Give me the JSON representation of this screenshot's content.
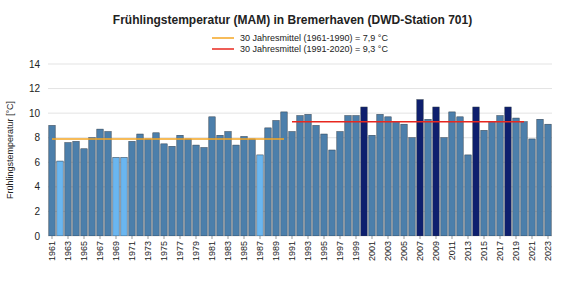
{
  "chart_data": {
    "type": "bar",
    "title": "Frühlingstemperatur (MAM) in Bremerhaven (DWD-Station 701)",
    "y_label": "Frühlingstemperatur [°C]",
    "categories": [
      "1961",
      null,
      "1963",
      null,
      "1965",
      null,
      "1967",
      null,
      "1969",
      null,
      "1971",
      null,
      "1973",
      null,
      "1975",
      null,
      "1977",
      null,
      "1979",
      null,
      "1981",
      null,
      "1983",
      null,
      "1985",
      null,
      "1987",
      null,
      "1989",
      null,
      "1991",
      null,
      "1993",
      null,
      "1995",
      null,
      "1997",
      null,
      "1999",
      null,
      "2001",
      null,
      "2003",
      null,
      "2005",
      null,
      "2007",
      null,
      "2009",
      null,
      "2011",
      null,
      "2013",
      null,
      "2015",
      null,
      "2017",
      null,
      "2019",
      null,
      "2021",
      null,
      "2023"
    ],
    "series": [
      {
        "type": "bar",
        "colors": [
          "#4c7fab",
          "#6ab6f0",
          "#4c7fab",
          "#4c7fab",
          "#4c7fab",
          "#4c7fab",
          "#4c7fab",
          "#4c7fab",
          "#6ab6f0",
          "#6ab6f0",
          "#4c7fab",
          "#4c7fab",
          "#4c7fab",
          "#4c7fab",
          "#4c7fab",
          "#4c7fab",
          "#4c7fab",
          "#4c7fab",
          "#4c7fab",
          "#4c7fab",
          "#4c7fab",
          "#4c7fab",
          "#4c7fab",
          "#4c7fab",
          "#4c7fab",
          "#4c7fab",
          "#6ab6f0",
          "#4c7fab",
          "#4c7fab",
          "#4c7fab",
          "#4c7fab",
          "#4c7fab",
          "#4c7fab",
          "#4c7fab",
          "#4c7fab",
          "#4c7fab",
          "#4c7fab",
          "#4c7fab",
          "#4c7fab",
          "#0e1f6e",
          "#4c7fab",
          "#4c7fab",
          "#4c7fab",
          "#4c7fab",
          "#4c7fab",
          "#4c7fab",
          "#0e1f6e",
          "#4c7fab",
          "#0e1f6e",
          "#4c7fab",
          "#4c7fab",
          "#4c7fab",
          "#4c7fab",
          "#0e1f6e",
          "#4c7fab",
          "#4c7fab",
          "#4c7fab",
          "#0e1f6e",
          "#4c7fab",
          "#4c7fab",
          "#4c7fab",
          "#4c7fab",
          "#4c7fab"
        ],
        "values": [
          9.0,
          6.1,
          7.6,
          7.7,
          7.1,
          8.0,
          8.7,
          8.5,
          6.4,
          6.4,
          7.7,
          8.3,
          7.9,
          8.4,
          7.5,
          7.3,
          8.2,
          7.9,
          7.4,
          7.2,
          9.7,
          8.2,
          8.5,
          7.4,
          8.1,
          7.9,
          6.6,
          8.8,
          9.4,
          10.1,
          8.5,
          9.8,
          9.9,
          9.0,
          8.3,
          7.0,
          8.5,
          9.8,
          9.8,
          10.5,
          8.2,
          9.9,
          9.7,
          9.3,
          9.1,
          8.0,
          11.1,
          9.5,
          10.5,
          8.0,
          10.1,
          9.7,
          6.6,
          10.5,
          8.6,
          9.3,
          9.8,
          10.5,
          9.6,
          9.3,
          7.9,
          9.5,
          9.1
        ]
      },
      {
        "type": "line",
        "name": "30 Jahresmittel (1961-1990) = 7,9 °C",
        "color": "#f5a623",
        "values": [
          7.9,
          7.9,
          7.9,
          7.9,
          7.9,
          7.9,
          7.9,
          7.9,
          7.9,
          7.9,
          7.9,
          7.9,
          7.9,
          7.9,
          7.9,
          7.9,
          7.9,
          7.9,
          7.9,
          7.9,
          7.9,
          7.9,
          7.9,
          7.9,
          7.9,
          7.9,
          7.9,
          7.9,
          7.9,
          7.9,
          null,
          null,
          null,
          null,
          null,
          null,
          null,
          null,
          null,
          null,
          null,
          null,
          null,
          null,
          null,
          null,
          null,
          null,
          null,
          null,
          null,
          null,
          null,
          null,
          null,
          null,
          null,
          null,
          null,
          null,
          null,
          null,
          null
        ]
      },
      {
        "type": "line",
        "name": "30 Jahresmittel (1991-2020) = 9,3 °C",
        "color": "#e8271e",
        "values": [
          null,
          null,
          null,
          null,
          null,
          null,
          null,
          null,
          null,
          null,
          null,
          null,
          null,
          null,
          null,
          null,
          null,
          null,
          null,
          null,
          null,
          null,
          null,
          null,
          null,
          null,
          null,
          null,
          null,
          null,
          9.3,
          9.3,
          9.3,
          9.3,
          9.3,
          9.3,
          9.3,
          9.3,
          9.3,
          9.3,
          9.3,
          9.3,
          9.3,
          9.3,
          9.3,
          9.3,
          9.3,
          9.3,
          9.3,
          9.3,
          9.3,
          9.3,
          9.3,
          9.3,
          9.3,
          9.3,
          9.3,
          9.3,
          9.3,
          9.3,
          null,
          null,
          null
        ]
      }
    ],
    "ylim": [
      0,
      14
    ],
    "yticks": [
      0,
      2,
      4,
      6,
      8,
      10,
      12,
      14
    ],
    "grid": true,
    "legend": "top"
  }
}
